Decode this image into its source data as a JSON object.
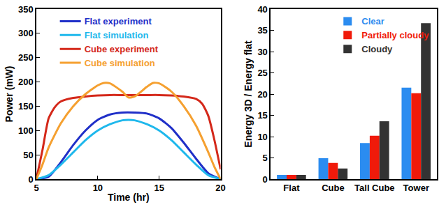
{
  "chart_data": [
    {
      "type": "line",
      "x_label": "Time (hr)",
      "y_label": "Power (mW)",
      "xlim": [
        5,
        20
      ],
      "xticks": [
        5,
        10,
        15,
        20
      ],
      "ylim": [
        0,
        350
      ],
      "yticks": [
        0,
        50,
        100,
        150,
        200,
        250,
        300,
        350
      ],
      "legend": "top-left",
      "series": [
        {
          "name": "Flat experiment",
          "color": "#1f2fc8",
          "x": [
            5,
            6,
            7,
            8,
            9,
            10,
            11,
            12,
            13,
            14,
            15,
            16,
            17,
            18,
            19,
            20
          ],
          "values": [
            0,
            5,
            35,
            70,
            100,
            122,
            133,
            137,
            137,
            135,
            125,
            105,
            75,
            42,
            12,
            0
          ]
        },
        {
          "name": "Flat simulation",
          "color": "#1fb8ec",
          "x": [
            5,
            6,
            7,
            8,
            9,
            10,
            11,
            12,
            12.5,
            13,
            14,
            15,
            16,
            17,
            18,
            19,
            20
          ],
          "values": [
            0,
            8,
            30,
            55,
            80,
            100,
            113,
            121,
            122,
            121,
            113,
            100,
            80,
            55,
            30,
            8,
            0
          ]
        },
        {
          "name": "Cube experiment",
          "color": "#d4281a",
          "x": [
            5,
            5.5,
            6,
            6.5,
            7,
            8,
            9,
            10,
            11,
            12,
            13,
            14,
            15,
            16,
            17,
            18,
            18.5,
            19,
            19.5,
            20
          ],
          "values": [
            0,
            60,
            125,
            148,
            160,
            167,
            170,
            172,
            173,
            173,
            173,
            173,
            173,
            172,
            170,
            165,
            155,
            130,
            80,
            20
          ]
        },
        {
          "name": "Cube simulation",
          "color": "#f5a030",
          "x": [
            5,
            5.5,
            6,
            7,
            8,
            9,
            10,
            10.5,
            11,
            12,
            12.5,
            13,
            14,
            14.5,
            15,
            16,
            17,
            18,
            19,
            19.5,
            20
          ],
          "values": [
            0,
            30,
            65,
            115,
            150,
            175,
            193,
            198,
            197,
            180,
            168,
            170,
            190,
            198,
            197,
            180,
            150,
            110,
            55,
            25,
            0
          ]
        }
      ]
    },
    {
      "type": "bar",
      "y_label": "Energy 3D / Energy flat",
      "categories": [
        "Flat",
        "Cube",
        "Tall Cube",
        "Tower"
      ],
      "ylim": [
        0,
        40
      ],
      "yticks": [
        0,
        5,
        10,
        15,
        20,
        25,
        30,
        35,
        40
      ],
      "legend": "top-right",
      "series": [
        {
          "name": "Clear",
          "color": "#2b8cf0",
          "values": [
            1,
            4.9,
            8.5,
            21.5
          ]
        },
        {
          "name": "Partially cloudy",
          "color": "#f01a0a",
          "values": [
            1,
            3.8,
            10.2,
            20.2
          ]
        },
        {
          "name": "Cloudy",
          "color": "#333333",
          "values": [
            1,
            2.5,
            13.6,
            36.7
          ]
        }
      ]
    }
  ]
}
